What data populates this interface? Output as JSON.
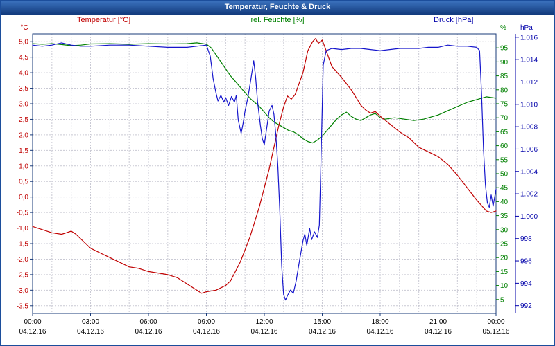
{
  "window": {
    "title": "Temperatur, Feuchte & Druck"
  },
  "legend": {
    "temperature": "Temperatur [°C]",
    "humidity": "rel. Feuchte [%]",
    "pressure": "Druck [hPa]"
  },
  "style": {
    "titlebar_color": "#1c4e9c",
    "grid_color": "#c9c9d4",
    "frame_color": "#1a3b7a",
    "text_color": "#000000",
    "background": "#ffffff"
  },
  "chart_data": {
    "type": "line",
    "title": "Temperatur, Feuchte & Druck",
    "grid": "dashed, hourly vertical lines and 0.5°C horizontal lines",
    "legend_position": "top",
    "x_axis": {
      "range_hours": [
        0,
        24
      ],
      "tick_hours": [
        0,
        3,
        6,
        9,
        12,
        15,
        18,
        21,
        24
      ],
      "tick_labels": [
        "00:00",
        "03:00",
        "06:00",
        "09:00",
        "12:00",
        "15:00",
        "18:00",
        "21:00",
        "00:00"
      ],
      "date_labels": [
        "04.12.16",
        "04.12.16",
        "04.12.16",
        "04.12.16",
        "04.12.16",
        "04.12.16",
        "04.12.16",
        "04.12.16",
        "05.12.16"
      ]
    },
    "axes": {
      "temperature": {
        "unit": "°C",
        "color": "#c00000",
        "side": "left",
        "domain": [
          -3.75,
          5.25
        ],
        "ticks": [
          5,
          4.5,
          4,
          3.5,
          3,
          2.5,
          2,
          1.5,
          1,
          0.5,
          0,
          -0.5,
          -1,
          -1.5,
          -2,
          -2.5,
          -3,
          -3.5
        ],
        "tick_labels": [
          "5,0",
          "4,5",
          "4,0",
          "3,5",
          "3,0",
          "2,5",
          "2,0",
          "1,5",
          "1,0",
          "0,5",
          "0,0",
          "-0,5",
          "-1,0",
          "-1,5",
          "-2,0",
          "-2,5",
          "-3,0",
          "-3,5"
        ]
      },
      "humidity": {
        "unit": "%",
        "color": "#008000",
        "side": "right-inner",
        "domain": [
          0,
          100
        ],
        "ticks": [
          95,
          90,
          85,
          80,
          75,
          70,
          65,
          60,
          55,
          50,
          45,
          40,
          35,
          30,
          25,
          20,
          15,
          10,
          5
        ],
        "tick_labels": [
          "95",
          "90",
          "85",
          "80",
          "75",
          "70",
          "65",
          "60",
          "55",
          "50",
          "45",
          "40",
          "35",
          "30",
          "25",
          "20",
          "15",
          "10",
          "5"
        ]
      },
      "pressure": {
        "unit": "hPa",
        "color": "#0000aa",
        "side": "right-outer",
        "domain": [
          991.3,
          1016.3
        ],
        "ticks": [
          1016,
          1014,
          1012,
          1010,
          1008,
          1006,
          1004,
          1002,
          1000,
          998,
          996,
          994,
          992
        ],
        "tick_labels": [
          "1.016",
          "1.014",
          "1.012",
          "1.010",
          "1.008",
          "1.006",
          "1.004",
          "1.002",
          "1.000",
          "998",
          "996",
          "994",
          "992"
        ]
      }
    },
    "series": [
      {
        "name": "rel. Feuchte",
        "axis": "humidity",
        "color": "#008000",
        "points": [
          [
            0,
            96.5
          ],
          [
            0.5,
            96.3
          ],
          [
            1,
            96.5
          ],
          [
            1.5,
            96.2
          ],
          [
            2,
            95.8
          ],
          [
            2.5,
            96
          ],
          [
            3,
            96.4
          ],
          [
            4,
            96.5
          ],
          [
            5,
            96.3
          ],
          [
            6,
            96.5
          ],
          [
            7,
            96.4
          ],
          [
            8,
            96.5
          ],
          [
            8.5,
            96.8
          ],
          [
            9,
            96.3
          ],
          [
            9.25,
            95
          ],
          [
            9.5,
            92.5
          ],
          [
            9.75,
            90
          ],
          [
            10,
            87.5
          ],
          [
            10.25,
            85
          ],
          [
            10.5,
            83
          ],
          [
            10.75,
            81
          ],
          [
            11,
            79
          ],
          [
            11.25,
            77
          ],
          [
            11.5,
            75.5
          ],
          [
            11.75,
            74
          ],
          [
            12,
            72
          ],
          [
            12.25,
            70
          ],
          [
            12.5,
            68.5
          ],
          [
            12.75,
            67.5
          ],
          [
            13,
            66.5
          ],
          [
            13.25,
            65.5
          ],
          [
            13.5,
            65
          ],
          [
            13.75,
            64
          ],
          [
            14,
            62.5
          ],
          [
            14.25,
            61.5
          ],
          [
            14.5,
            61
          ],
          [
            14.75,
            62
          ],
          [
            15,
            63.5
          ],
          [
            15.25,
            65.5
          ],
          [
            15.5,
            67.5
          ],
          [
            15.75,
            69.5
          ],
          [
            16,
            71
          ],
          [
            16.25,
            72
          ],
          [
            16.5,
            70.5
          ],
          [
            16.75,
            69.5
          ],
          [
            17,
            69
          ],
          [
            17.25,
            70
          ],
          [
            17.5,
            71
          ],
          [
            17.75,
            71.5
          ],
          [
            18,
            70
          ],
          [
            18.25,
            69.5
          ],
          [
            18.75,
            70
          ],
          [
            19.25,
            69.5
          ],
          [
            19.75,
            69
          ],
          [
            20.25,
            69.5
          ],
          [
            20.75,
            70.5
          ],
          [
            21,
            71
          ],
          [
            21.5,
            72.5
          ],
          [
            22,
            74
          ],
          [
            22.5,
            75.5
          ],
          [
            23,
            76.5
          ],
          [
            23.5,
            77.5
          ],
          [
            24,
            77
          ]
        ]
      },
      {
        "name": "Temperatur",
        "axis": "temperature",
        "color": "#c00000",
        "points": [
          [
            0,
            -0.95
          ],
          [
            0.25,
            -1
          ],
          [
            0.5,
            -1.05
          ],
          [
            1,
            -1.15
          ],
          [
            1.5,
            -1.2
          ],
          [
            1.75,
            -1.15
          ],
          [
            2,
            -1.1
          ],
          [
            2.25,
            -1.2
          ],
          [
            2.5,
            -1.35
          ],
          [
            2.75,
            -1.5
          ],
          [
            3,
            -1.65
          ],
          [
            3.5,
            -1.8
          ],
          [
            4,
            -1.95
          ],
          [
            4.5,
            -2.1
          ],
          [
            5,
            -2.25
          ],
          [
            5.5,
            -2.3
          ],
          [
            6,
            -2.4
          ],
          [
            6.5,
            -2.45
          ],
          [
            7,
            -2.5
          ],
          [
            7.5,
            -2.6
          ],
          [
            8,
            -2.8
          ],
          [
            8.5,
            -3
          ],
          [
            8.75,
            -3.1
          ],
          [
            9,
            -3.05
          ],
          [
            9.5,
            -3
          ],
          [
            10,
            -2.85
          ],
          [
            10.25,
            -2.7
          ],
          [
            10.5,
            -2.4
          ],
          [
            10.75,
            -2.1
          ],
          [
            11,
            -1.7
          ],
          [
            11.25,
            -1.3
          ],
          [
            11.5,
            -0.8
          ],
          [
            11.75,
            -0.3
          ],
          [
            12,
            0.3
          ],
          [
            12.25,
            0.9
          ],
          [
            12.5,
            1.6
          ],
          [
            12.75,
            2.3
          ],
          [
            13,
            2.9
          ],
          [
            13.2,
            3.25
          ],
          [
            13.4,
            3.15
          ],
          [
            13.6,
            3.3
          ],
          [
            14,
            4
          ],
          [
            14.25,
            4.7
          ],
          [
            14.5,
            5
          ],
          [
            14.65,
            5.1
          ],
          [
            14.8,
            4.95
          ],
          [
            15,
            5.05
          ],
          [
            15.15,
            4.8
          ],
          [
            15.5,
            4.2
          ],
          [
            16,
            3.85
          ],
          [
            16.5,
            3.45
          ],
          [
            17,
            2.95
          ],
          [
            17.25,
            2.8
          ],
          [
            17.5,
            2.7
          ],
          [
            17.75,
            2.75
          ],
          [
            18,
            2.6
          ],
          [
            18.5,
            2.35
          ],
          [
            19,
            2.1
          ],
          [
            19.5,
            1.9
          ],
          [
            20,
            1.6
          ],
          [
            20.5,
            1.45
          ],
          [
            21,
            1.3
          ],
          [
            21.5,
            1.05
          ],
          [
            22,
            0.7
          ],
          [
            22.5,
            0.3
          ],
          [
            23,
            -0.1
          ],
          [
            23.5,
            -0.45
          ],
          [
            23.75,
            -0.5
          ],
          [
            24,
            -0.45
          ]
        ]
      },
      {
        "name": "Druck",
        "axis": "pressure",
        "color": "#1515cc",
        "points": [
          [
            0,
            1015.3
          ],
          [
            0.5,
            1015.2
          ],
          [
            1,
            1015.3
          ],
          [
            1.5,
            1015.5
          ],
          [
            2,
            1015.3
          ],
          [
            2.5,
            1015.2
          ],
          [
            3,
            1015.2
          ],
          [
            4,
            1015.3
          ],
          [
            5,
            1015.3
          ],
          [
            6,
            1015.2
          ],
          [
            7,
            1015.1
          ],
          [
            8,
            1015.1
          ],
          [
            8.5,
            1015.2
          ],
          [
            9,
            1015.3
          ],
          [
            9.2,
            1014.3
          ],
          [
            9.35,
            1012.3
          ],
          [
            9.5,
            1011
          ],
          [
            9.6,
            1010.3
          ],
          [
            9.75,
            1010.8
          ],
          [
            9.9,
            1010.2
          ],
          [
            10,
            1010.6
          ],
          [
            10.15,
            1009.9
          ],
          [
            10.3,
            1010.7
          ],
          [
            10.45,
            1010.2
          ],
          [
            10.55,
            1010.8
          ],
          [
            10.65,
            1008.6
          ],
          [
            10.8,
            1007.4
          ],
          [
            10.9,
            1008.3
          ],
          [
            11,
            1009.4
          ],
          [
            11.15,
            1010.6
          ],
          [
            11.3,
            1012.2
          ],
          [
            11.45,
            1013.9
          ],
          [
            11.55,
            1012.4
          ],
          [
            11.65,
            1010.2
          ],
          [
            11.8,
            1008.1
          ],
          [
            11.9,
            1006.9
          ],
          [
            12,
            1006.4
          ],
          [
            12.1,
            1007.6
          ],
          [
            12.25,
            1009.4
          ],
          [
            12.4,
            1009.9
          ],
          [
            12.5,
            1009.1
          ],
          [
            12.6,
            1007.2
          ],
          [
            12.7,
            1004.5
          ],
          [
            12.8,
            1000.5
          ],
          [
            12.9,
            995.5
          ],
          [
            13,
            993
          ],
          [
            13.1,
            992.5
          ],
          [
            13.2,
            992.9
          ],
          [
            13.35,
            993.4
          ],
          [
            13.5,
            993.1
          ],
          [
            13.65,
            994.2
          ],
          [
            13.8,
            995.8
          ],
          [
            14,
            997.8
          ],
          [
            14.1,
            998.4
          ],
          [
            14.2,
            997.4
          ],
          [
            14.35,
            998.9
          ],
          [
            14.45,
            997.9
          ],
          [
            14.6,
            998.6
          ],
          [
            14.75,
            998.1
          ],
          [
            14.85,
            999.2
          ],
          [
            14.95,
            1006
          ],
          [
            15.05,
            1013.5
          ],
          [
            15.2,
            1014.8
          ],
          [
            15.5,
            1015
          ],
          [
            16,
            1014.9
          ],
          [
            16.5,
            1015
          ],
          [
            17,
            1015
          ],
          [
            17.5,
            1014.9
          ],
          [
            18,
            1014.8
          ],
          [
            18.5,
            1014.9
          ],
          [
            19,
            1015
          ],
          [
            19.5,
            1015
          ],
          [
            20,
            1015
          ],
          [
            20.5,
            1015.1
          ],
          [
            21,
            1015.1
          ],
          [
            21.5,
            1015.3
          ],
          [
            22,
            1015.2
          ],
          [
            22.5,
            1015.2
          ],
          [
            23,
            1015.1
          ],
          [
            23.15,
            1014.8
          ],
          [
            23.25,
            1011
          ],
          [
            23.35,
            1006
          ],
          [
            23.45,
            1002.8
          ],
          [
            23.55,
            1001.2
          ],
          [
            23.65,
            1000.8
          ],
          [
            23.75,
            1001.9
          ],
          [
            23.85,
            1000.9
          ],
          [
            24,
            1002.4
          ]
        ]
      }
    ]
  }
}
